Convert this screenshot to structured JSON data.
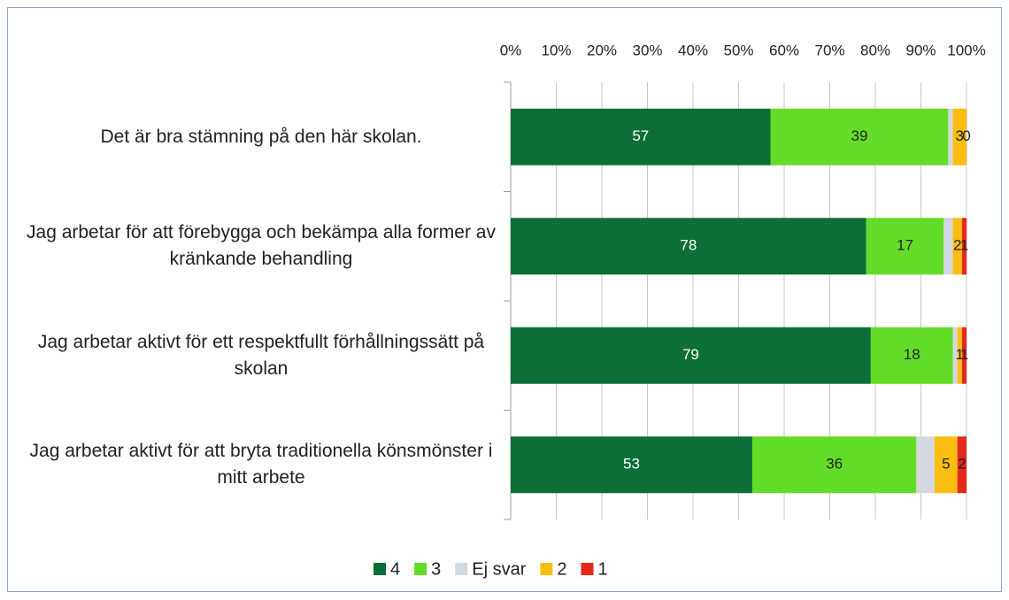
{
  "chart_data": {
    "type": "stacked_barh",
    "categories": [
      "Det är bra stämning på den här skolan.",
      "Jag arbetar för att förebygga och bekämpa alla former av kränkande behandling",
      "Jag arbetar aktivt för ett respektfullt förhållningssätt på skolan",
      "Jag arbetar aktivt för att bryta traditionella könsmönster i mitt arbete"
    ],
    "series": [
      {
        "name": "4",
        "color": "#0e6e37",
        "label_color": "#ffffff",
        "values": [
          57,
          78,
          79,
          53
        ]
      },
      {
        "name": "3",
        "color": "#63dc27",
        "label_color": "#222222",
        "values": [
          39,
          17,
          18,
          36
        ]
      },
      {
        "name": "Ej svar",
        "color": "#d3d7df",
        "data_labels": false,
        "values": [
          1,
          2,
          1,
          4
        ]
      },
      {
        "name": "2",
        "color": "#fbbd10",
        "label_color": "#222222",
        "values": [
          3,
          2,
          1,
          5
        ]
      },
      {
        "name": "1",
        "color": "#e5271c",
        "label_color": "#222222",
        "values": [
          0,
          1,
          1,
          2
        ]
      }
    ],
    "xlim": [
      0,
      100
    ],
    "xticks": [
      {
        "value": 0,
        "label": "0%"
      },
      {
        "value": 10,
        "label": "10%"
      },
      {
        "value": 20,
        "label": "20%"
      },
      {
        "value": 30,
        "label": "30%"
      },
      {
        "value": 40,
        "label": "40%"
      },
      {
        "value": 50,
        "label": "50%"
      },
      {
        "value": 60,
        "label": "60%"
      },
      {
        "value": 70,
        "label": "70%"
      },
      {
        "value": 80,
        "label": "80%"
      },
      {
        "value": 90,
        "label": "90%"
      },
      {
        "value": 100,
        "label": "100%"
      }
    ],
    "grid": true,
    "legend": "bottom"
  }
}
